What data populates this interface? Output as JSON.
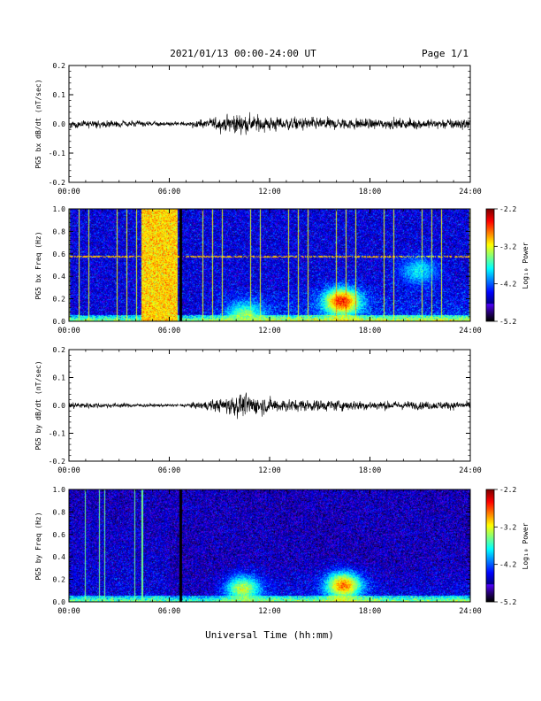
{
  "header": {
    "title": "2021/01/13  00:00-24:00 UT",
    "page": "Page 1/1"
  },
  "xaxis": {
    "label": "Universal Time (hh:mm)",
    "ticks": [
      "00:00",
      "06:00",
      "12:00",
      "18:00",
      "24:00"
    ]
  },
  "colorbar": {
    "label": "Log₁₀ Power",
    "ticks": [
      "-2.2",
      "-3.2",
      "-4.2",
      "-5.2"
    ],
    "range": [
      -5.2,
      -2.2
    ]
  },
  "chart_data": [
    {
      "type": "line",
      "ylabel": "PG5 bx dB/dt (nT/sec)",
      "xlim": [
        0,
        24
      ],
      "ylim": [
        -0.2,
        0.2
      ],
      "yticks": [
        "0.2",
        "0.1",
        "0.0",
        "-0.1",
        "-0.2"
      ],
      "envelope": {
        "hours": [
          0,
          2,
          4,
          6,
          7,
          8,
          9,
          10,
          11,
          12,
          13,
          14,
          16,
          18,
          20,
          22,
          24
        ],
        "amplitude": [
          0.012,
          0.01,
          0.008,
          0.006,
          0.008,
          0.012,
          0.018,
          0.03,
          0.025,
          0.022,
          0.02,
          0.018,
          0.016,
          0.015,
          0.014,
          0.014,
          0.016
        ]
      }
    },
    {
      "type": "heatmap",
      "ylabel": "PG5 bx Freq (Hz)",
      "xlim": [
        0,
        24
      ],
      "ylim": [
        0,
        1.0
      ],
      "yticks": [
        "1.0",
        "0.8",
        "0.6",
        "0.4",
        "0.2",
        "0.0"
      ],
      "data_gap_hour": 6.6,
      "saturated_interval_hours": [
        4.3,
        6.5
      ],
      "interference_line_hz": 0.58,
      "enhancements": [
        {
          "hour": 10.5,
          "freq_hz": 0.05,
          "log_power": -3.4
        },
        {
          "hour": 16.3,
          "freq_hz": 0.18,
          "log_power": -2.6
        },
        {
          "hour": 20.9,
          "freq_hz": 0.45,
          "log_power": -3.8
        }
      ]
    },
    {
      "type": "line",
      "ylabel": "PG5 by dB/dt (nT/sec)",
      "xlim": [
        0,
        24
      ],
      "ylim": [
        -0.2,
        0.2
      ],
      "yticks": [
        "0.2",
        "0.1",
        "0.0",
        "-0.1",
        "-0.2"
      ],
      "envelope": {
        "hours": [
          0,
          2,
          4,
          6,
          7,
          8,
          9,
          10,
          11,
          12,
          13,
          14,
          16,
          18,
          20,
          22,
          24
        ],
        "amplitude": [
          0.01,
          0.008,
          0.006,
          0.004,
          0.006,
          0.012,
          0.02,
          0.035,
          0.03,
          0.022,
          0.02,
          0.018,
          0.016,
          0.014,
          0.012,
          0.012,
          0.012
        ]
      }
    },
    {
      "type": "heatmap",
      "ylabel": "PG5 by Freq (Hz)",
      "xlim": [
        0,
        24
      ],
      "ylim": [
        0,
        1.0
      ],
      "yticks": [
        "1.0",
        "0.8",
        "0.6",
        "0.4",
        "0.2",
        "0.0"
      ],
      "data_gap_hour": 6.6,
      "enhancements": [
        {
          "hour": 10.4,
          "freq_hz": 0.12,
          "log_power": -3.3
        },
        {
          "hour": 16.4,
          "freq_hz": 0.15,
          "log_power": -2.8
        }
      ]
    }
  ]
}
